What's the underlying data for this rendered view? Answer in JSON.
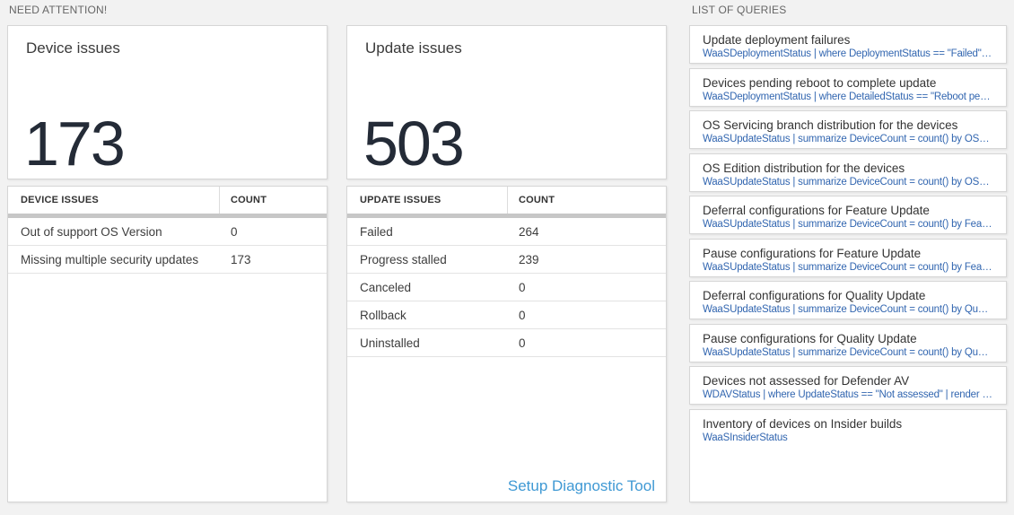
{
  "need_attention": {
    "header": "NEED ATTENTION!",
    "device_card": {
      "title": "Device issues",
      "big_number": "173",
      "columns": {
        "col1": "DEVICE ISSUES",
        "col2": "COUNT"
      },
      "rows": [
        {
          "label": "Out of support OS Version",
          "count": "0"
        },
        {
          "label": "Missing multiple security updates",
          "count": "173"
        }
      ]
    },
    "update_card": {
      "title": "Update issues",
      "big_number": "503",
      "columns": {
        "col1": "UPDATE ISSUES",
        "col2": "COUNT"
      },
      "rows": [
        {
          "label": "Failed",
          "count": "264"
        },
        {
          "label": "Progress stalled",
          "count": "239"
        },
        {
          "label": "Canceled",
          "count": "0"
        },
        {
          "label": "Rollback",
          "count": "0"
        },
        {
          "label": "Uninstalled",
          "count": "0"
        }
      ],
      "footer_link": "Setup Diagnostic Tool"
    }
  },
  "queries": {
    "header": "LIST OF QUERIES",
    "items": [
      {
        "title": "Update deployment failures",
        "query": "WaaSDeploymentStatus | where DeploymentStatus == \"Failed\" |..."
      },
      {
        "title": "Devices pending reboot to complete update",
        "query": "WaaSDeploymentStatus | where DetailedStatus == \"Reboot pend..."
      },
      {
        "title": "OS Servicing branch distribution for the devices",
        "query": "WaaSUpdateStatus | summarize DeviceCount = count() by OSSer..."
      },
      {
        "title": "OS Edition distribution for the devices",
        "query": "WaaSUpdateStatus | summarize DeviceCount = count() by OSEdit..."
      },
      {
        "title": "Deferral configurations for Feature Update",
        "query": "WaaSUpdateStatus | summarize DeviceCount = count() by Featur..."
      },
      {
        "title": "Pause configurations for Feature Update",
        "query": "WaaSUpdateStatus | summarize DeviceCount = count() by Featur..."
      },
      {
        "title": "Deferral configurations for Quality Update",
        "query": "WaaSUpdateStatus | summarize DeviceCount = count() by Qualit..."
      },
      {
        "title": "Pause configurations for Quality Update",
        "query": "WaaSUpdateStatus | summarize DeviceCount = count() by Qualit..."
      },
      {
        "title": "Devices not assessed for Defender AV",
        "query": "WDAVStatus | where UpdateStatus == \"Not assessed\" | render ta..."
      },
      {
        "title": "Inventory of devices on Insider builds",
        "query": "WaaSInsiderStatus"
      }
    ]
  },
  "colors": {
    "page_bg": "#f2f2f2",
    "card_border": "#d6d6d6",
    "big_number": "#242b37",
    "query_link_blue": "#3266b0",
    "footer_link_blue": "#3f99d4",
    "section_header_gray": "#666666",
    "table_divider_bar": "#c7c7c7"
  }
}
